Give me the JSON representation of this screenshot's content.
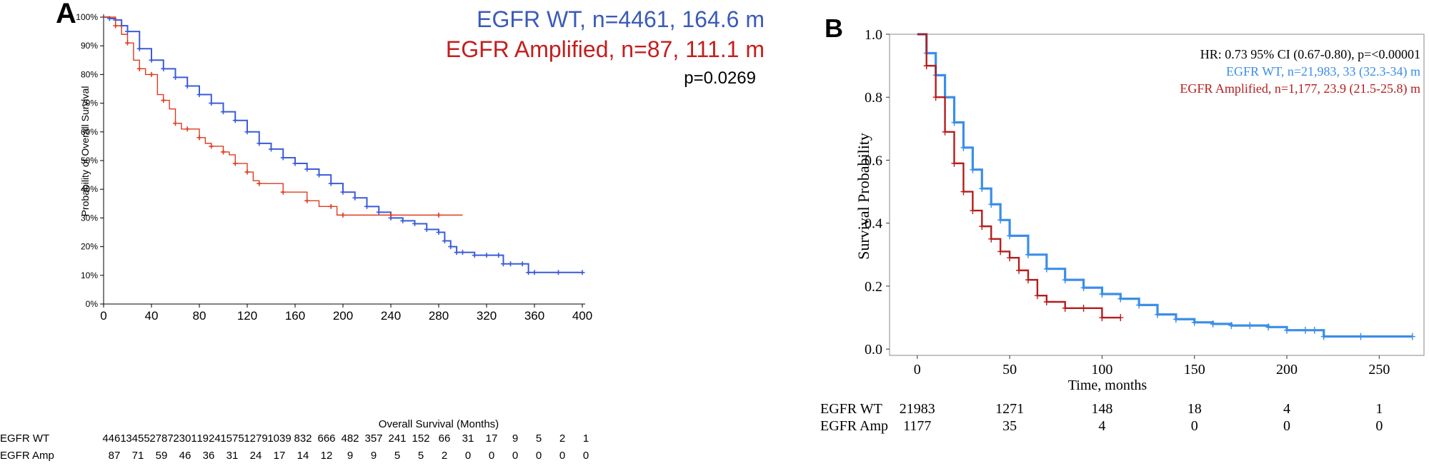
{
  "chart_data": [
    {
      "panel_label": "A",
      "type": "line",
      "subtype": "kaplan-meier",
      "xlabel": "Overall Survival (Months)",
      "ylabel": "Probability of Overall Survival",
      "xlim": [
        0,
        400
      ],
      "ylim": [
        0,
        100
      ],
      "xticks": [
        "0",
        "40",
        "80",
        "120",
        "160",
        "200",
        "240",
        "280",
        "320",
        "360",
        "400"
      ],
      "yticks": [
        "0%",
        "10%",
        "20%",
        "30%",
        "40%",
        "50%",
        "60%",
        "70%",
        "80%",
        "90%",
        "100%"
      ],
      "legend": [
        {
          "text": "EGFR WT, n=4461, 164.6 m",
          "color": "#3a5bb8"
        },
        {
          "text": "EGFR Amplified, n=87, 111.1 m",
          "color": "#c41e1e"
        }
      ],
      "pvalue": "p=0.0269",
      "series": [
        {
          "name": "EGFR WT",
          "color": "#3a5bd9",
          "x": [
            0,
            5,
            10,
            15,
            20,
            30,
            40,
            50,
            60,
            70,
            80,
            90,
            100,
            110,
            120,
            130,
            140,
            150,
            160,
            170,
            180,
            190,
            200,
            210,
            220,
            230,
            240,
            250,
            260,
            270,
            280,
            285,
            290,
            295,
            300,
            310,
            320,
            330,
            334,
            340,
            350,
            355,
            360,
            380,
            400
          ],
          "y": [
            100,
            99.5,
            99,
            97,
            95,
            89,
            85,
            82,
            79,
            76,
            73,
            70,
            67,
            64,
            60,
            56,
            54,
            51,
            49,
            47,
            45,
            42,
            39,
            37,
            34,
            32,
            30,
            29,
            28,
            26,
            25,
            22,
            20,
            18,
            18,
            17,
            17,
            17,
            14,
            14,
            14,
            11,
            11,
            11,
            11
          ]
        },
        {
          "name": "EGFR Amp",
          "color": "#dd3b1f",
          "x": [
            0,
            10,
            15,
            20,
            25,
            30,
            35,
            40,
            45,
            50,
            55,
            60,
            65,
            70,
            75,
            80,
            85,
            90,
            95,
            100,
            105,
            110,
            115,
            120,
            125,
            130,
            140,
            150,
            160,
            170,
            180,
            190,
            195,
            200,
            220,
            240,
            260,
            280,
            300
          ],
          "y": [
            100,
            97,
            94,
            91,
            85,
            82,
            80,
            80,
            73,
            71,
            68,
            63,
            61,
            61,
            61,
            58,
            56,
            55,
            55,
            53,
            52,
            49,
            49,
            46,
            43,
            42,
            42,
            39,
            39,
            36,
            34,
            34,
            31,
            31,
            31,
            31,
            31,
            31,
            31
          ]
        }
      ],
      "risk_table": {
        "times": [
          "0",
          "20",
          "40",
          "60",
          "80",
          "100",
          "120",
          "140",
          "160",
          "180",
          "200",
          "220",
          "240",
          "260",
          "280",
          "300",
          "320",
          "340",
          "360",
          "380",
          "400"
        ],
        "rows": [
          {
            "label": "EGFR WT",
            "values": [
              "4461",
              "3455",
              "2787",
              "2301",
              "1924",
              "1575",
              "1279",
              "1039",
              "832",
              "666",
              "482",
              "357",
              "241",
              "152",
              "66",
              "31",
              "17",
              "9",
              "5",
              "2",
              "1"
            ]
          },
          {
            "label": "EGFR Amp",
            "values": [
              "87",
              "71",
              "59",
              "46",
              "36",
              "31",
              "24",
              "17",
              "14",
              "12",
              "9",
              "9",
              "5",
              "5",
              "2",
              "0",
              "0",
              "0",
              "0",
              "0",
              "0"
            ]
          }
        ]
      }
    },
    {
      "panel_label": "B",
      "type": "line",
      "subtype": "kaplan-meier",
      "xlabel": "Time, months",
      "ylabel": "Survival Probability",
      "xlim": [
        -15,
        275
      ],
      "ylim": [
        -0.02,
        1.0
      ],
      "xticks": [
        "0",
        "50",
        "100",
        "150",
        "200",
        "250"
      ],
      "yticks": [
        "0.0",
        "0.2",
        "0.4",
        "0.6",
        "0.8",
        "1.0"
      ],
      "annotations": [
        {
          "text": "HR: 0.73 95% CI (0.67-0.80), p=<0.00001",
          "color": "#000000"
        },
        {
          "text": "EGFR WT, n=21,983, 33 (32.3-34) m",
          "color": "#3b8ee8"
        },
        {
          "text": "EGFR Amplified, n=1,177, 23.9 (21.5-25.8) m",
          "color": "#b51d1d"
        }
      ],
      "series": [
        {
          "name": "EGFR WT",
          "color": "#3b8ee8",
          "x": [
            0,
            5,
            10,
            15,
            20,
            25,
            30,
            35,
            40,
            45,
            50,
            60,
            70,
            80,
            90,
            100,
            110,
            120,
            130,
            140,
            150,
            160,
            170,
            180,
            190,
            200,
            210,
            215,
            220,
            240,
            268
          ],
          "y": [
            1.0,
            0.94,
            0.87,
            0.8,
            0.72,
            0.64,
            0.57,
            0.51,
            0.46,
            0.41,
            0.36,
            0.3,
            0.255,
            0.22,
            0.195,
            0.175,
            0.16,
            0.14,
            0.11,
            0.095,
            0.085,
            0.08,
            0.075,
            0.075,
            0.07,
            0.06,
            0.06,
            0.06,
            0.04,
            0.04,
            0.04
          ]
        },
        {
          "name": "EGFR Amp",
          "color": "#b51d1d",
          "x": [
            0,
            5,
            10,
            15,
            20,
            25,
            30,
            35,
            40,
            45,
            50,
            55,
            60,
            65,
            70,
            80,
            90,
            100,
            110
          ],
          "y": [
            1.0,
            0.9,
            0.8,
            0.69,
            0.59,
            0.5,
            0.44,
            0.39,
            0.35,
            0.31,
            0.29,
            0.25,
            0.22,
            0.17,
            0.15,
            0.13,
            0.13,
            0.1,
            0.1
          ]
        }
      ],
      "risk_table": {
        "times": [
          "0",
          "50",
          "100",
          "150",
          "200",
          "250"
        ],
        "rows": [
          {
            "label": "EGFR WT",
            "values": [
              "21983",
              "1271",
              "148",
              "18",
              "4",
              "1"
            ]
          },
          {
            "label": "EGFR Amp",
            "values": [
              "1177",
              "35",
              "4",
              "0",
              "0",
              "0"
            ]
          }
        ]
      }
    }
  ]
}
